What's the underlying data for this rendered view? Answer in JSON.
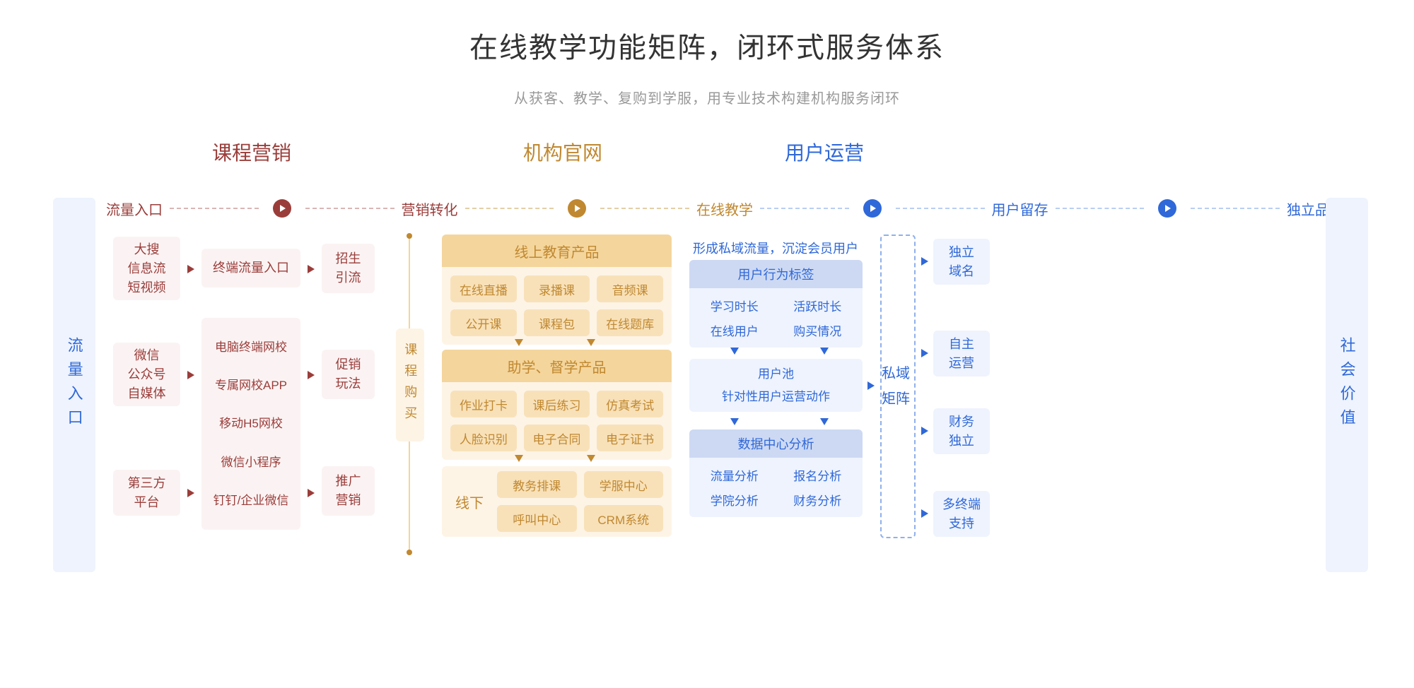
{
  "title": "在线教学功能矩阵，闭环式服务体系",
  "subtitle": "从获客、教学、复购到学服，用专业技术构建机构服务闭环",
  "colors": {
    "red": "#9a3d3a",
    "red_bg": "#fbf3f3",
    "red_dark": "#8d2f2c",
    "orange": "#c08830",
    "orange_bg_light": "#fdf4e6",
    "orange_bg_mid": "#f8e1b9",
    "orange_bg_deep": "#f4d59c",
    "blue": "#2f68d8",
    "blue_bg_light": "#eef3fd",
    "blue_bg_mid": "#d7e2f8",
    "blue_bg_deep": "#cdd9f3",
    "gray": "#999999",
    "black": "#333333"
  },
  "sections": {
    "marketing": "课程营销",
    "site": "机构官网",
    "ops": "用户运营"
  },
  "subheaders": {
    "traffic": "流量入口",
    "convert": "营销转化",
    "teach": "在线教学",
    "retain": "用户留存",
    "brand": "独立品牌"
  },
  "left_bar": "流量入口",
  "right_bar": "社会价值",
  "mid_bar": "课程购买",
  "priv_bar": "私域矩阵",
  "red_col1": {
    "a": "大搜\n信息流\n短视频",
    "b": "微信\n公众号\n自媒体",
    "c": "第三方\n平台"
  },
  "red_col2": {
    "a": "终端流量入口",
    "b1": "电脑终端网校",
    "b2": "专属网校APP",
    "b3": "移动H5网校",
    "b4": "微信小程序",
    "b5": "钉钉/企业微信"
  },
  "red_col3": {
    "a": "招生\n引流",
    "b": "促销\n玩法",
    "c": "推广\n营销"
  },
  "orange_panel1": {
    "title": "线上教育产品",
    "items": [
      "在线直播",
      "录播课",
      "音频课",
      "公开课",
      "课程包",
      "在线题库"
    ]
  },
  "orange_panel2": {
    "title": "助学、督学产品",
    "items": [
      "作业打卡",
      "课后练习",
      "仿真考试",
      "人脸识别",
      "电子合同",
      "电子证书"
    ]
  },
  "orange_panel3": {
    "title": "线下",
    "items": [
      "教务排课",
      "学服中心",
      "呼叫中心",
      "CRM系统"
    ]
  },
  "blue_note": "形成私域流量，沉淀会员用户",
  "blue_box1": {
    "title": "用户行为标签",
    "items": [
      "学习时长",
      "活跃时长",
      "在线用户",
      "购买情况"
    ]
  },
  "blue_box2": {
    "title": "用户池",
    "sub": "针对性用户运营动作"
  },
  "blue_box3": {
    "title": "数据中心分析",
    "items": [
      "流量分析",
      "报名分析",
      "学院分析",
      "财务分析"
    ]
  },
  "brand_boxes": [
    "独立\n域名",
    "自主\n运营",
    "财务\n独立",
    "多终端\n支持"
  ]
}
